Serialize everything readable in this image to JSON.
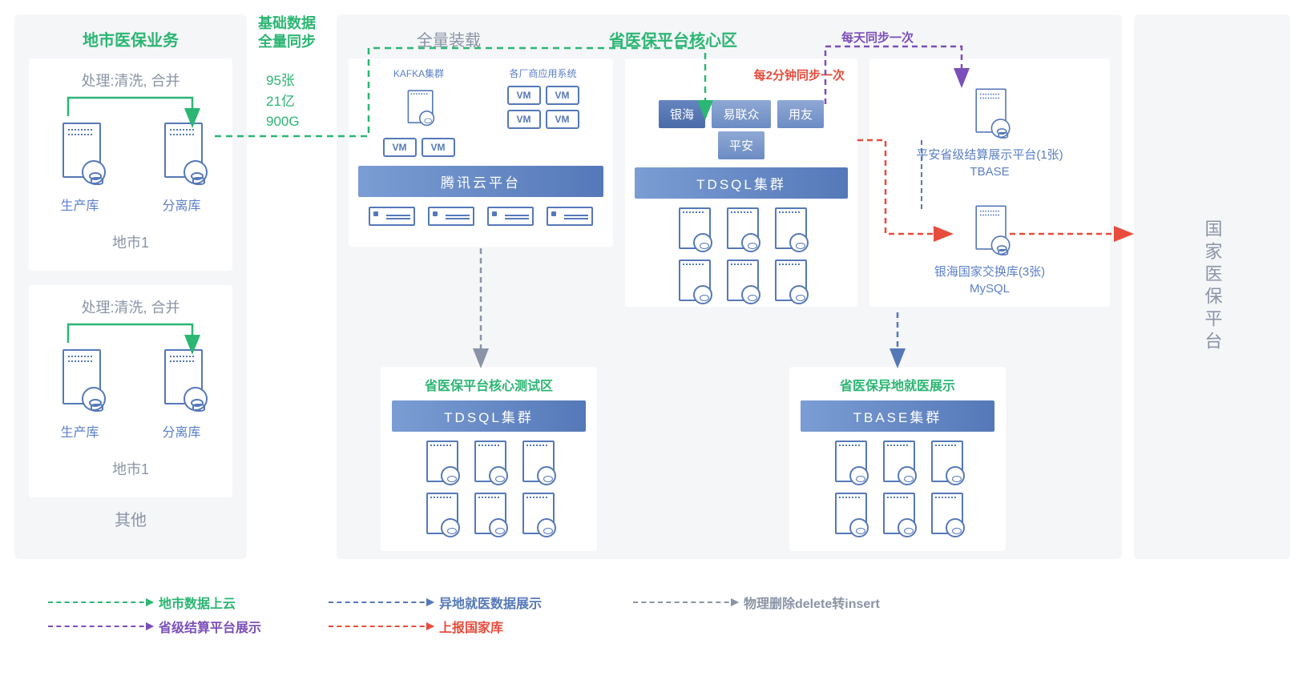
{
  "colors": {
    "green": "#2bb673",
    "blue": "#5578b8",
    "lightblue": "#8a94a6",
    "purple": "#7b4fb9",
    "red": "#e74c3c",
    "gray": "#8a94a6",
    "bg": "#f5f6f8"
  },
  "left": {
    "title": "地市医保业务",
    "process": "处理:清洗, 合并",
    "prod": "生产库",
    "sep": "分离库",
    "city": "地市1",
    "other": "其他"
  },
  "sync": {
    "heading": "基础数据\n全量同步",
    "s1": "95张",
    "s2": "21亿",
    "s3": "900G"
  },
  "core": {
    "load": "全量装载",
    "title": "省医保平台核心区",
    "kafka": "KAFKA集群",
    "apps": "各厂商应用系统",
    "tencent": "腾讯云平台",
    "tdsql": "TDSQL集群",
    "tags": [
      "银海",
      "易联众",
      "用友",
      "平安"
    ],
    "sync2": "每2分钟同步一次",
    "daily": "每天同步一次",
    "pingan": "平安省级结算展示平台(1张)\nTBASE",
    "yinhai": "银海国家交换库(3张)\nMySQL"
  },
  "bottom": {
    "test": "省医保平台核心测试区",
    "tdsql": "TDSQL集群",
    "remote": "省医保异地就医展示",
    "tbase": "TBASE集群"
  },
  "right": {
    "national": "国家医保平台"
  },
  "legend": {
    "l1": "地市数据上云",
    "l2": "异地就医数据展示",
    "l3": "物理删除delete转insert",
    "l4": "省级结算平台展示",
    "l5": "上报国家库"
  }
}
